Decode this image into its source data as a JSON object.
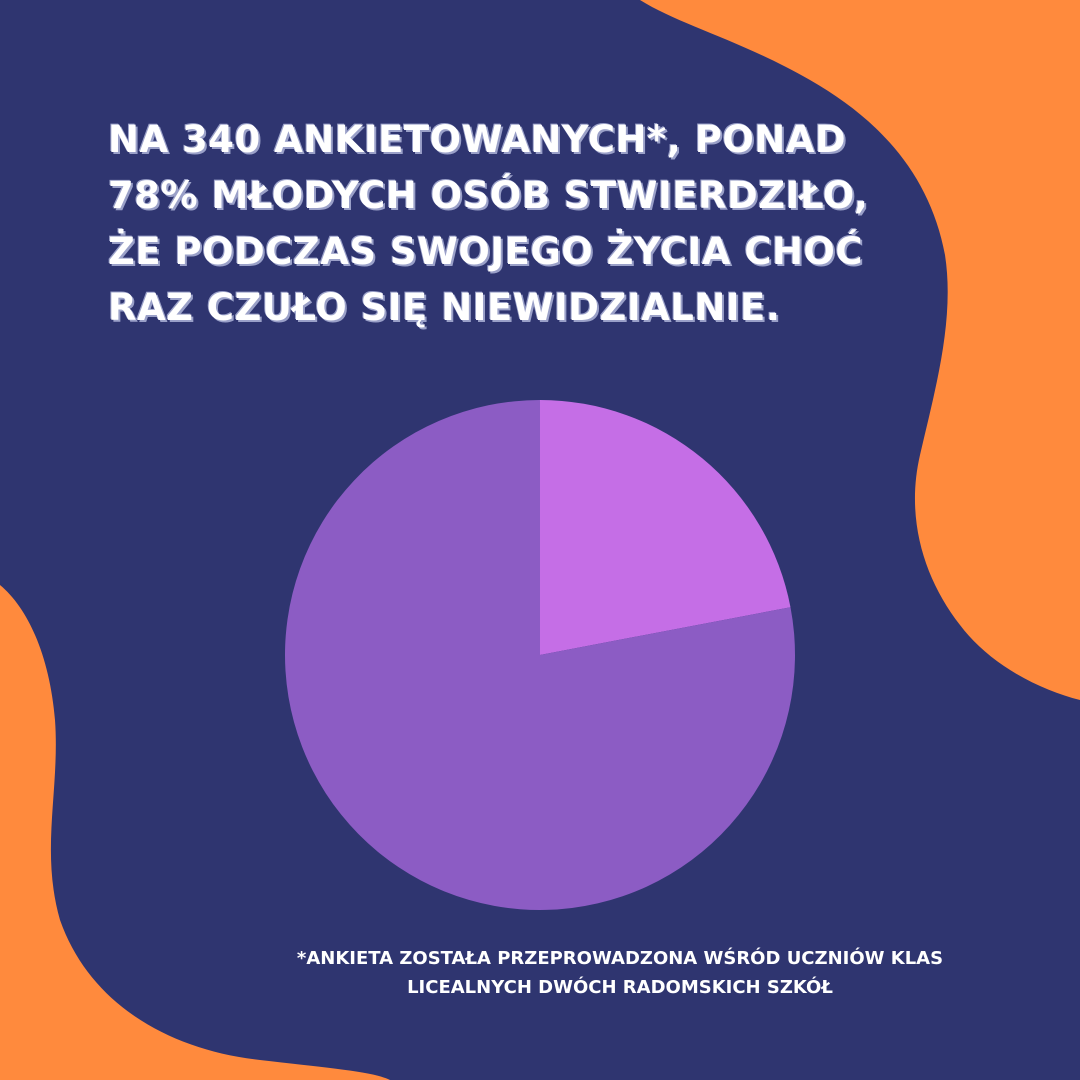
{
  "headline": {
    "lines": [
      "NA 340 ANKIETOWANYCH*, PONAD",
      "78% MŁODYCH OSÓB STWIERDZIŁO,",
      "ŻE PODCZAS SWOJEGO ŻYCIA CHOĆ",
      "RAZ CZUŁO SIĘ NIEWIDZIALNIE."
    ]
  },
  "footnote": {
    "lines": [
      "*ANKIETA ZOSTAŁA PRZEPROWADZONA WŚRÓD UCZNIÓW KLAS",
      "LICEALNYCH DWÓCH RADOMSKICH SZKÓŁ"
    ]
  },
  "colors": {
    "background": "#2f3570",
    "accent_orange": "#ff8a3d",
    "slice_major": "#8c5cc4",
    "slice_minor": "#c56ee6"
  },
  "chart_data": {
    "type": "pie",
    "values": [
      22,
      78
    ],
    "colors": [
      "#c56ee6",
      "#8c5cc4"
    ],
    "start_angle_deg": 0,
    "direction": "clockwise"
  }
}
